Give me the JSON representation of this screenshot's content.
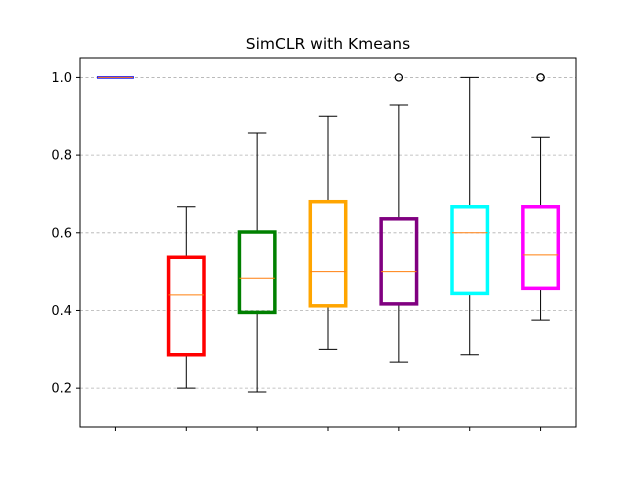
{
  "chart_data": {
    "type": "box",
    "title": "SimCLR with Kmeans",
    "xlabel": "",
    "ylabel": "",
    "ylim": [
      0.1,
      1.05
    ],
    "yticks": [
      0.2,
      0.4,
      0.6,
      0.8,
      1.0
    ],
    "ytick_labels": [
      "0.2",
      "0.4",
      "0.6",
      "0.8",
      "1.0"
    ],
    "grid": "y-dashed",
    "median_color": "#ff7f0e",
    "whisker_color": "#000000",
    "boxes": [
      {
        "color": "#0000ff",
        "whislo": 1.0,
        "q1": 1.0,
        "median": 1.0,
        "q3": 1.0,
        "whishi": 1.0,
        "fliers": []
      },
      {
        "color": "#ff0000",
        "whislo": 0.2,
        "q1": 0.286,
        "median": 0.44,
        "q3": 0.537,
        "whishi": 0.667,
        "fliers": []
      },
      {
        "color": "#008000",
        "whislo": 0.19,
        "q1": 0.395,
        "median": 0.483,
        "q3": 0.602,
        "whishi": 0.857,
        "fliers": []
      },
      {
        "color": "#ffa500",
        "whislo": 0.3,
        "q1": 0.412,
        "median": 0.5,
        "q3": 0.68,
        "whishi": 0.9,
        "fliers": []
      },
      {
        "color": "#800080",
        "whislo": 0.267,
        "q1": 0.417,
        "median": 0.5,
        "q3": 0.636,
        "whishi": 0.929,
        "fliers": [
          1.0
        ]
      },
      {
        "color": "#00ffff",
        "whislo": 0.286,
        "q1": 0.444,
        "median": 0.6,
        "q3": 0.667,
        "whishi": 1.0,
        "fliers": []
      },
      {
        "color": "#ff00ff",
        "whislo": 0.375,
        "q1": 0.457,
        "median": 0.543,
        "q3": 0.667,
        "whishi": 0.846,
        "fliers": [
          1.0,
          1.0
        ]
      }
    ]
  }
}
